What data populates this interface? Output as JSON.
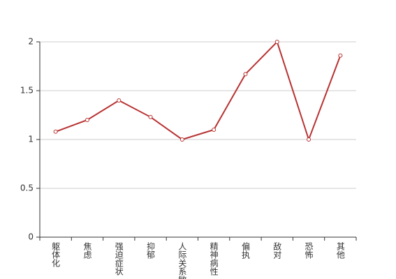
{
  "chart_data": {
    "type": "line",
    "categories": [
      "躯体化",
      "焦虑",
      "强迫症状",
      "抑郁",
      "人际关系敏感",
      "精神病性",
      "偏执",
      "敌对",
      "恐怖",
      "其他"
    ],
    "series": [
      {
        "color": "#b83232",
        "values": [
          1.08,
          1.2,
          1.4,
          1.23,
          1.0,
          1.1,
          1.67,
          2.0,
          1.0,
          1.86
        ]
      }
    ],
    "ylim": [
      0,
      2
    ],
    "yticks": [
      0,
      0.5,
      1,
      1.5,
      2
    ],
    "grid": true
  }
}
